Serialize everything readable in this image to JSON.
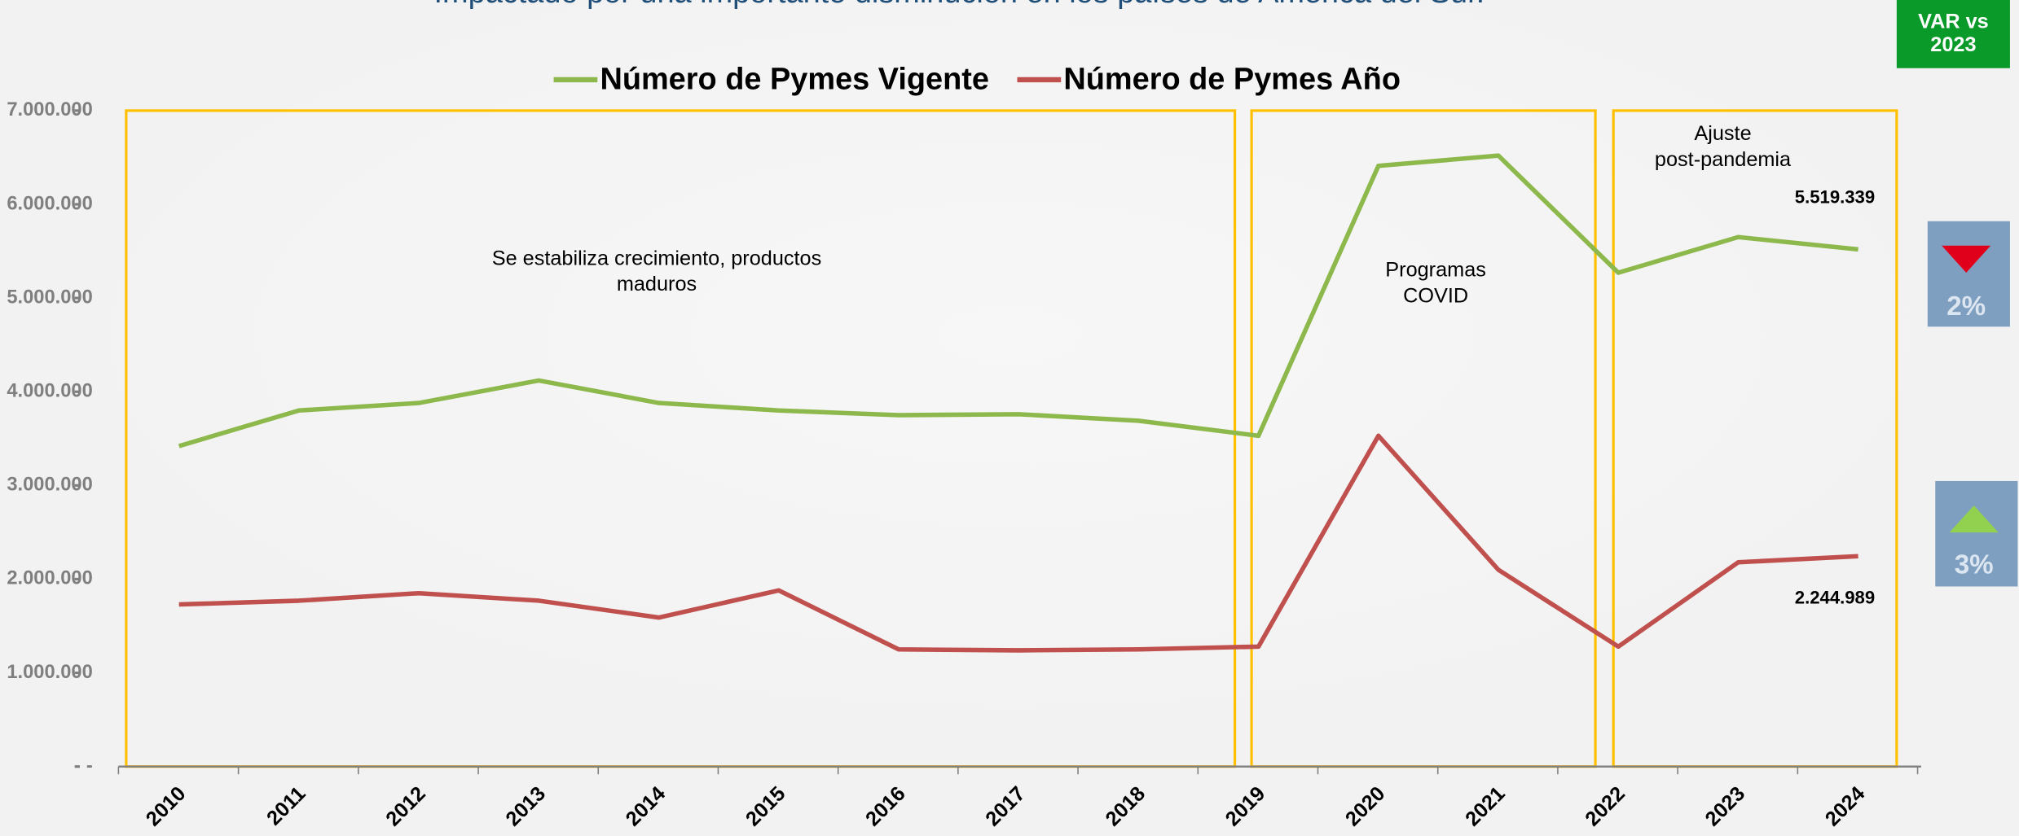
{
  "chart_data": {
    "type": "line",
    "subtitle": "Impactado por una importante disminución en los países de América del Sur.",
    "categories": [
      "2010",
      "2011",
      "2012",
      "2013",
      "2014",
      "2015",
      "2016",
      "2017",
      "2018",
      "2019",
      "2020",
      "2021",
      "2022",
      "2023",
      "2024"
    ],
    "series": [
      {
        "name": "Número de Pymes Vigente",
        "color": "#8db84c",
        "values": [
          3420000,
          3800000,
          3880000,
          4120000,
          3880000,
          3800000,
          3750000,
          3760000,
          3690000,
          3530000,
          6410000,
          6520000,
          5270000,
          5650000,
          5519339
        ],
        "value_labels": [
          null,
          null,
          null,
          null,
          null,
          null,
          null,
          null,
          null,
          null,
          null,
          null,
          null,
          null,
          "5.519.339"
        ]
      },
      {
        "name": "Número de Pymes Año",
        "color": "#c0504d",
        "values": [
          1730000,
          1770000,
          1850000,
          1770000,
          1590000,
          1880000,
          1250000,
          1240000,
          1250000,
          1280000,
          3530000,
          2100000,
          1280000,
          2180000,
          2244989
        ],
        "value_labels": [
          null,
          null,
          null,
          null,
          null,
          null,
          null,
          null,
          null,
          null,
          null,
          null,
          null,
          null,
          "2.244.989"
        ]
      }
    ],
    "ylim": [
      0,
      7000000
    ],
    "yticks": [
      {
        "value": 0,
        "label": "-"
      },
      {
        "value": 1000000,
        "label": "1.000.000"
      },
      {
        "value": 2000000,
        "label": "2.000.000"
      },
      {
        "value": 3000000,
        "label": "3.000.000"
      },
      {
        "value": 4000000,
        "label": "4.000.000"
      },
      {
        "value": 5000000,
        "label": "5.000.000"
      },
      {
        "value": 6000000,
        "label": "6.000.000"
      },
      {
        "value": 7000000,
        "label": "7.000.000"
      }
    ],
    "grid": false,
    "legend": "top",
    "annotations": [
      {
        "lines": [
          "Se estabiliza crecimiento,  productos",
          "maduros"
        ]
      },
      {
        "lines": [
          "Programas",
          "COVID"
        ]
      },
      {
        "lines": [
          "Ajuste",
          "post-pandemia"
        ]
      }
    ]
  },
  "var_panel": {
    "title": [
      "VAR vs",
      "2023"
    ],
    "items": [
      {
        "label": "2%"
      },
      {
        "label": "3%"
      }
    ]
  }
}
